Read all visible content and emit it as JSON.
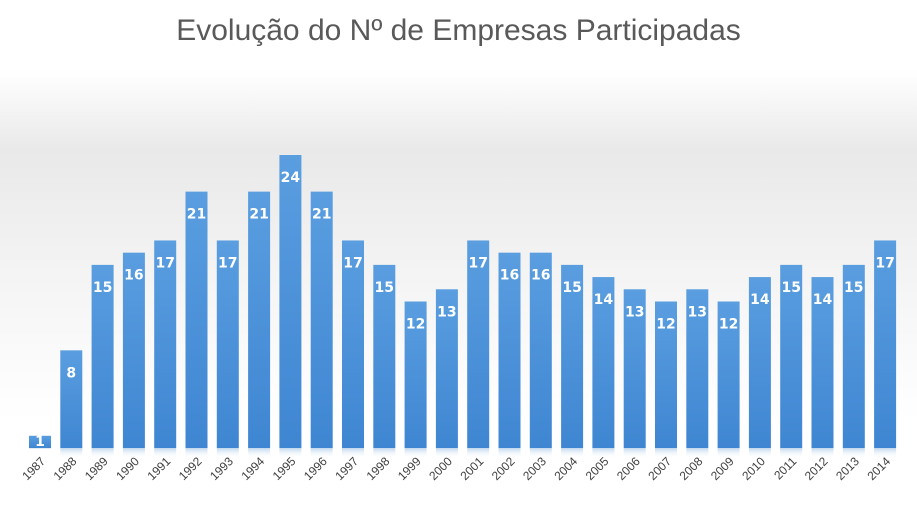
{
  "chart_data": {
    "type": "bar",
    "title": "Evolução do Nº de Empresas Participadas",
    "xlabel": "",
    "ylabel": "",
    "categories": [
      "1987",
      "1988",
      "1989",
      "1990",
      "1991",
      "1992",
      "1993",
      "1994",
      "1995",
      "1996",
      "1997",
      "1998",
      "1999",
      "2000",
      "2001",
      "2002",
      "2003",
      "2004",
      "2005",
      "2006",
      "2007",
      "2008",
      "2009",
      "2010",
      "2011",
      "2012",
      "2013",
      "2014"
    ],
    "series": [
      {
        "values": [
          1,
          8,
          15,
          16,
          17,
          21,
          17,
          21,
          24,
          21,
          17,
          15,
          12,
          13,
          17,
          16,
          16,
          15,
          14,
          13,
          12,
          13,
          12,
          14,
          15,
          14,
          15,
          17
        ]
      }
    ],
    "ylim": [
      0,
      24
    ],
    "grid": false,
    "legend": "none",
    "data_labels": true,
    "bar_color": "#4a90d9",
    "bar_color_dark": "#3a7fcc"
  }
}
